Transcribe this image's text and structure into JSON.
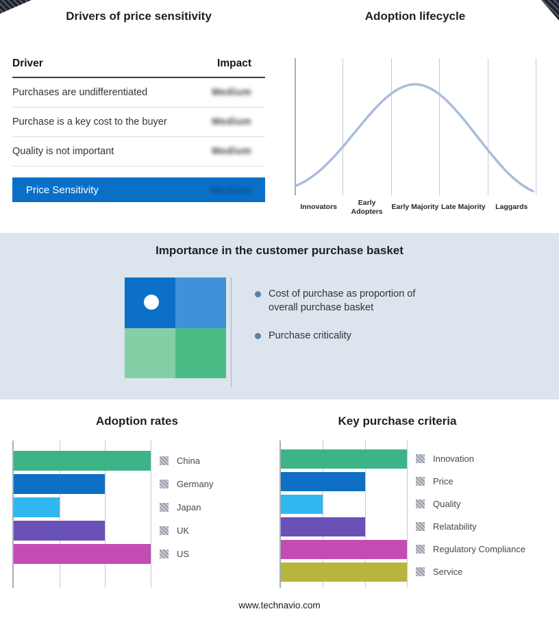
{
  "page": {
    "footer": "www.technavio.com"
  },
  "drivers_panel": {
    "title": "Drivers of price sensitivity",
    "columns": {
      "driver": "Driver",
      "impact": "Impact"
    },
    "rows": [
      {
        "driver": "Purchases are undifferentiated",
        "impact": "Medium"
      },
      {
        "driver": "Purchase is a key cost to the buyer",
        "impact": "Medium"
      },
      {
        "driver": "Quality is not important",
        "impact": "Medium"
      }
    ],
    "highlight": {
      "label": "Price Sensitivity",
      "impact": "Medium",
      "color": "#0a70c7"
    }
  },
  "lifecycle_panel": {
    "title": "Adoption lifecycle",
    "stages": [
      "Innovators",
      "Early Adopters",
      "Early Majority",
      "Late Majority",
      "Laggards"
    ],
    "curve_color": "#a8bdd8"
  },
  "basket_panel": {
    "title": "Importance in the customer purchase basket",
    "bullets": [
      "Cost of purchase as proportion of overall purchase basket",
      "Purchase criticality"
    ],
    "quadrant_colors": [
      "#0c70c8",
      "#3f92da",
      "#85cfa7",
      "#4cbc87"
    ],
    "background": "#dce4ee"
  },
  "chart_data": [
    {
      "type": "bar",
      "title": "Adoption rates",
      "orientation": "horizontal",
      "categories": [
        "China",
        "Germany",
        "Japan",
        "UK",
        "US"
      ],
      "values": [
        3,
        2,
        1,
        2,
        3
      ],
      "colors": [
        "#3db487",
        "#0f6fc5",
        "#31b7f0",
        "#6a51b8",
        "#c24cb2"
      ],
      "xlim": [
        0,
        3
      ],
      "grid": true,
      "legend_position": "right"
    },
    {
      "type": "bar",
      "title": "Key purchase criteria",
      "orientation": "horizontal",
      "categories": [
        "Innovation",
        "Price",
        "Quality",
        "Relatability",
        "Regulatory Compliance",
        "Service"
      ],
      "values": [
        3,
        2,
        1,
        2,
        3,
        3
      ],
      "colors": [
        "#3db487",
        "#0f6fc5",
        "#31b7f0",
        "#6a51b8",
        "#c24cb2",
        "#b6b63d"
      ],
      "xlim": [
        0,
        3
      ],
      "grid": true,
      "legend_position": "right"
    }
  ]
}
